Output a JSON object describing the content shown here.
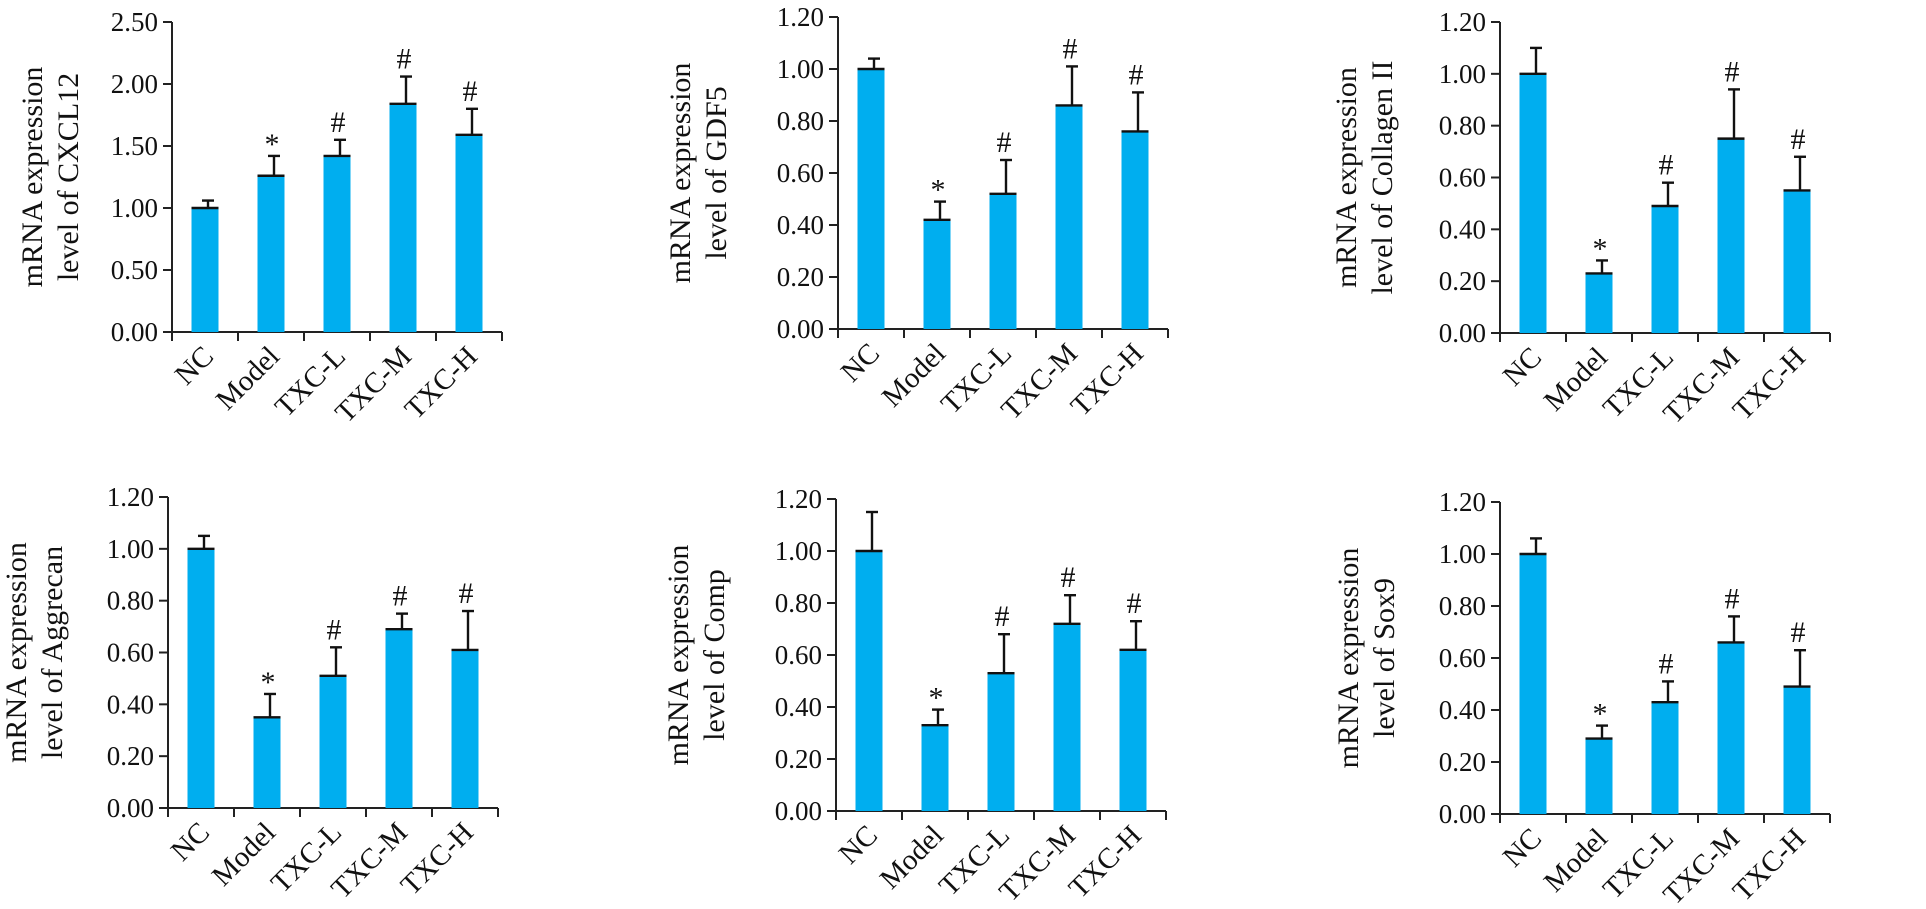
{
  "figure": {
    "bar_color": "#00aeef",
    "axis_color": "#222222"
  },
  "chart_data": [
    {
      "type": "bar",
      "categories": [
        "NC",
        "Model",
        "TXC-L",
        "TXC-M",
        "TXC-H"
      ],
      "ylabel": [
        "mRNA expression",
        "level of CXCL12"
      ],
      "ylim": [
        0,
        2.5
      ],
      "yticks": [
        "0.00",
        "0.50",
        "1.00",
        "1.50",
        "2.00",
        "2.50"
      ],
      "ytick_values": [
        0,
        0.5,
        1.0,
        1.5,
        2.0,
        2.5
      ],
      "values": [
        1.0,
        1.26,
        1.42,
        1.84,
        1.59
      ],
      "errors": [
        0.06,
        0.16,
        0.13,
        0.22,
        0.21
      ],
      "significance": [
        "",
        "*",
        "#",
        "#",
        "#"
      ]
    },
    {
      "type": "bar",
      "categories": [
        "NC",
        "Model",
        "TXC-L",
        "TXC-M",
        "TXC-H"
      ],
      "ylabel": [
        "mRNA expression",
        "level of GDF5"
      ],
      "ylim": [
        0,
        1.2
      ],
      "yticks": [
        "0.00",
        "0.20",
        "0.40",
        "0.60",
        "0.80",
        "1.00",
        "1.20"
      ],
      "ytick_values": [
        0,
        0.2,
        0.4,
        0.6,
        0.8,
        1.0,
        1.2
      ],
      "values": [
        1.0,
        0.42,
        0.52,
        0.86,
        0.76
      ],
      "errors": [
        0.04,
        0.07,
        0.13,
        0.15,
        0.15
      ],
      "significance": [
        "",
        "*",
        "#",
        "#",
        "#"
      ]
    },
    {
      "type": "bar",
      "categories": [
        "NC",
        "Model",
        "TXC-L",
        "TXC-M",
        "TXC-H"
      ],
      "ylabel": [
        "mRNA expression",
        "level of Collagen II"
      ],
      "ylim": [
        0,
        1.2
      ],
      "yticks": [
        "0.00",
        "0.20",
        "0.40",
        "0.60",
        "0.80",
        "1.00",
        "1.20"
      ],
      "ytick_values": [
        0,
        0.2,
        0.4,
        0.6,
        0.8,
        1.0,
        1.2
      ],
      "values": [
        1.0,
        0.23,
        0.49,
        0.75,
        0.55
      ],
      "errors": [
        0.1,
        0.05,
        0.09,
        0.19,
        0.13
      ],
      "significance": [
        "",
        "*",
        "#",
        "#",
        "#"
      ]
    },
    {
      "type": "bar",
      "categories": [
        "NC",
        "Model",
        "TXC-L",
        "TXC-M",
        "TXC-H"
      ],
      "ylabel": [
        "mRNA expression",
        "level of Aggrecan"
      ],
      "ylim": [
        0,
        1.2
      ],
      "yticks": [
        "0.00",
        "0.20",
        "0.40",
        "0.60",
        "0.80",
        "1.00",
        "1.20"
      ],
      "ytick_values": [
        0,
        0.2,
        0.4,
        0.6,
        0.8,
        1.0,
        1.2
      ],
      "values": [
        1.0,
        0.35,
        0.51,
        0.69,
        0.61
      ],
      "errors": [
        0.05,
        0.09,
        0.11,
        0.06,
        0.15
      ],
      "significance": [
        "",
        "*",
        "#",
        "#",
        "#"
      ]
    },
    {
      "type": "bar",
      "categories": [
        "NC",
        "Model",
        "TXC-L",
        "TXC-M",
        "TXC-H"
      ],
      "ylabel": [
        "mRNA expression",
        "level of Comp"
      ],
      "ylim": [
        0,
        1.2
      ],
      "yticks": [
        "0.00",
        "0.20",
        "0.40",
        "0.60",
        "0.80",
        "1.00",
        "1.20"
      ],
      "ytick_values": [
        0,
        0.2,
        0.4,
        0.6,
        0.8,
        1.0,
        1.2
      ],
      "values": [
        1.0,
        0.33,
        0.53,
        0.72,
        0.62
      ],
      "errors": [
        0.15,
        0.06,
        0.15,
        0.11,
        0.11
      ],
      "significance": [
        "",
        "*",
        "#",
        "#",
        "#"
      ]
    },
    {
      "type": "bar",
      "categories": [
        "NC",
        "Model",
        "TXC-L",
        "TXC-M",
        "TXC-H"
      ],
      "ylabel": [
        "mRNA expression",
        "level of Sox9"
      ],
      "ylim": [
        0,
        1.2
      ],
      "yticks": [
        "0.00",
        "0.20",
        "0.40",
        "0.60",
        "0.80",
        "1.00",
        "1.20"
      ],
      "ytick_values": [
        0,
        0.2,
        0.4,
        0.6,
        0.8,
        1.0,
        1.2
      ],
      "values": [
        1.0,
        0.29,
        0.43,
        0.66,
        0.49
      ],
      "errors": [
        0.06,
        0.05,
        0.08,
        0.1,
        0.14
      ],
      "significance": [
        "",
        "*",
        "#",
        "#",
        "#"
      ]
    }
  ]
}
